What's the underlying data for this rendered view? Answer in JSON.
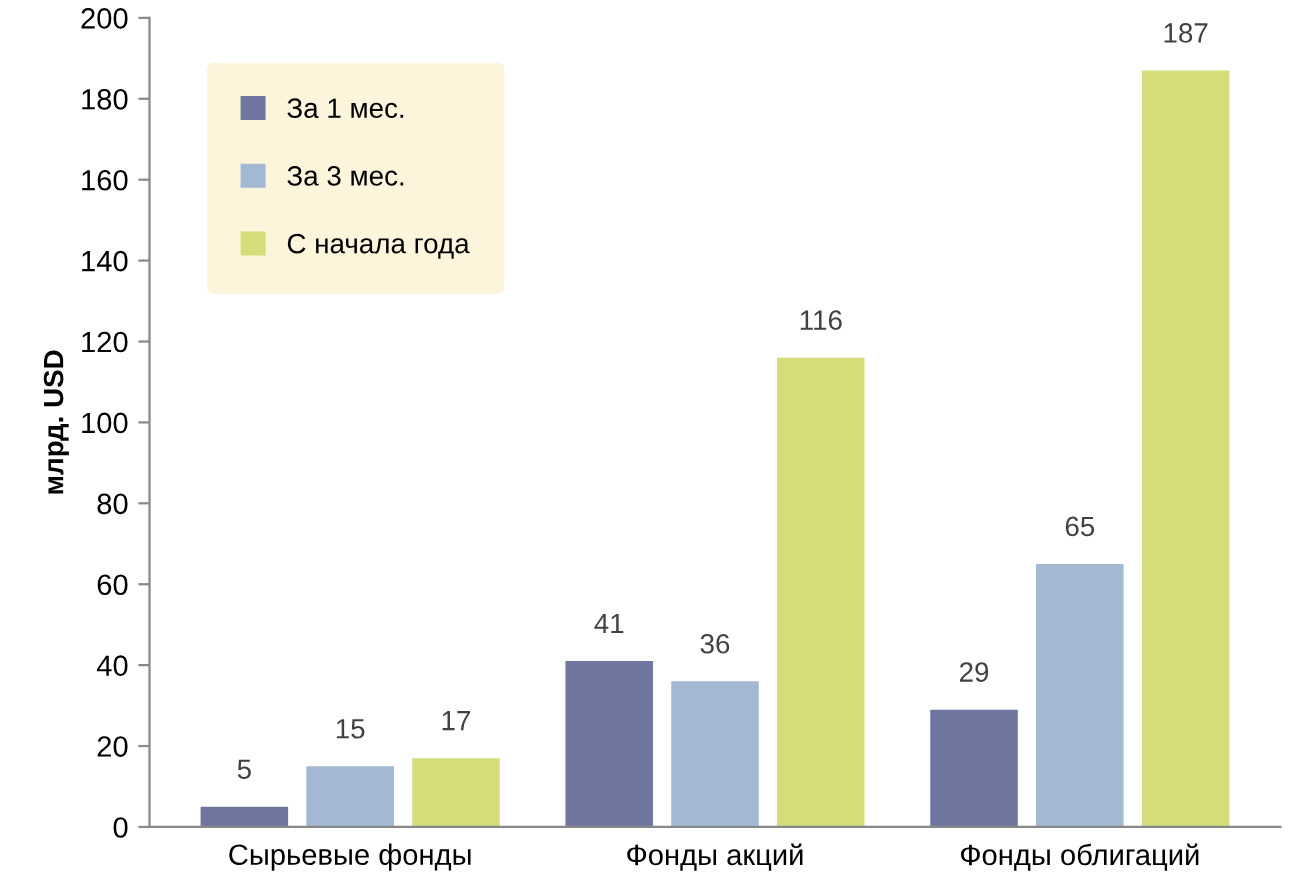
{
  "chart_data": {
    "type": "bar",
    "ylabel": "млрд. USD",
    "categories": [
      "Сырьевые фонды",
      "Фонды акций",
      "Фонды облигаций"
    ],
    "series": [
      {
        "name": "За 1 мес.",
        "color": "#6f77a1",
        "values": [
          5,
          41,
          29
        ]
      },
      {
        "name": "За 3 мес.",
        "color": "#a3b8d3",
        "values": [
          15,
          36,
          65
        ]
      },
      {
        "name": "С начала года",
        "color": "#d5dc7a",
        "values": [
          17,
          116,
          187
        ]
      }
    ],
    "ylim": [
      0,
      200
    ],
    "yticks": [
      0,
      20,
      40,
      60,
      80,
      100,
      120,
      140,
      160,
      180,
      200
    ],
    "data_labels": true,
    "grid": false,
    "legend": "top left"
  }
}
